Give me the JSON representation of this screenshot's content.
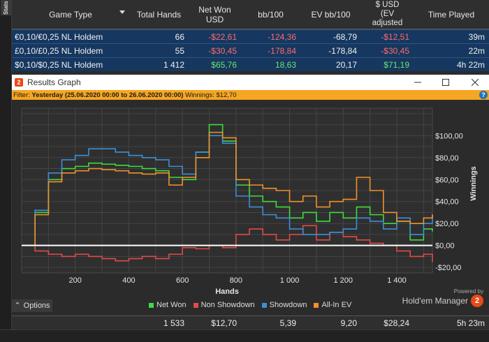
{
  "side": {
    "tab_label": "Stats"
  },
  "table": {
    "headers": [
      "Game Type",
      "Total Hands",
      "Net Won USD",
      "bb/100",
      "EV bb/100",
      "$ USD (EV adjusted",
      "Time Played"
    ],
    "header_lines": {
      "net_won": [
        "Net Won",
        "USD"
      ],
      "ev_adj": [
        "$ USD",
        "(EV",
        "adjusted"
      ]
    },
    "rows": [
      [
        "€0,10/€0,25 NL Holdem",
        "66",
        "-$22,61",
        "-124,36",
        "-68,79",
        "-$12,51",
        "39m"
      ],
      [
        "£0,10/£0,25 NL Holdem",
        "55",
        "-$30,45",
        "-178,84",
        "-178,84",
        "-$30,45",
        "22m"
      ],
      [
        "$0,10/$0,25 NL Holdem",
        "1 412",
        "$65,76",
        "18,63",
        "20,17",
        "$71,19",
        "4h 22m"
      ]
    ],
    "totals": [
      "",
      "1 533",
      "$12,70",
      "5,39",
      "9,20",
      "$28,24",
      "5h 23m"
    ]
  },
  "window": {
    "icon_text": "2",
    "title": "Results Graph",
    "filter_label": "Filter:",
    "filter_value": "Yesterday (25.06.2020 00:00 to 26.06.2020 00:00)",
    "winnings_label": "Winnings: $12,70",
    "help_text": "?"
  },
  "bottom": {
    "options_label": "Options",
    "legend": [
      {
        "name": "Net Won",
        "color": "#3ddc3d"
      },
      {
        "name": "Non Showdown",
        "color": "#e04a4a"
      },
      {
        "name": "Showdown",
        "color": "#3b8fd8"
      },
      {
        "name": "All-In EV",
        "color": "#f0922b"
      }
    ],
    "powered_by": "Powered by",
    "brand": "Hold'em Manager",
    "brand_icon": "2"
  },
  "colors": {
    "table_row": "#16375f",
    "negative": "#ff6b6b",
    "positive": "#6ee36e",
    "filter_bar": "#f5a623"
  },
  "chart_data": {
    "type": "line",
    "xlabel": "Hands",
    "ylabel": "Winnings",
    "xlim": [
      0,
      1533
    ],
    "ylim": [
      -25,
      125
    ],
    "xticks": [
      200,
      400,
      600,
      800,
      1000,
      1200,
      1400
    ],
    "xtick_labels": [
      "200",
      "400",
      "600",
      "800",
      "1 000",
      "1 200",
      "1 400"
    ],
    "yticks": [
      100,
      80,
      60,
      40,
      20,
      0,
      -20
    ],
    "ytick_labels": [
      "$100,00",
      "$80,00",
      "$60,00",
      "$40,00",
      "$20,00",
      "$0,00",
      "-$20,00"
    ],
    "grid": true,
    "x": [
      0,
      50,
      100,
      150,
      200,
      250,
      300,
      350,
      400,
      450,
      500,
      550,
      600,
      650,
      700,
      750,
      800,
      850,
      900,
      950,
      1000,
      1050,
      1100,
      1150,
      1200,
      1250,
      1300,
      1350,
      1400,
      1450,
      1500,
      1533
    ],
    "series": [
      {
        "name": "Net Won",
        "color": "#3ddc3d",
        "values": [
          0,
          30,
          60,
          70,
          72,
          75,
          74,
          73,
          72,
          70,
          68,
          62,
          60,
          85,
          110,
          95,
          55,
          45,
          40,
          35,
          25,
          30,
          22,
          30,
          25,
          35,
          28,
          20,
          22,
          5,
          15,
          12.7
        ]
      },
      {
        "name": "Non Showdown",
        "color": "#e04a4a",
        "values": [
          0,
          -5,
          -8,
          -10,
          -8,
          -10,
          -12,
          -14,
          -12,
          -10,
          -12,
          -8,
          -2,
          -3,
          0,
          -2,
          10,
          15,
          10,
          5,
          10,
          18,
          5,
          12,
          8,
          5,
          2,
          0,
          -5,
          -10,
          -8,
          -15
        ]
      },
      {
        "name": "Showdown",
        "color": "#3b8fd8",
        "values": [
          0,
          32,
          66,
          78,
          82,
          88,
          88,
          85,
          82,
          80,
          78,
          72,
          65,
          85,
          100,
          93,
          45,
          35,
          28,
          25,
          15,
          10,
          10,
          12,
          15,
          25,
          22,
          15,
          25,
          10,
          20,
          28
        ]
      },
      {
        "name": "All-In EV",
        "color": "#f0922b",
        "values": [
          0,
          28,
          58,
          66,
          68,
          70,
          69,
          68,
          66,
          65,
          66,
          55,
          62,
          80,
          103,
          98,
          60,
          55,
          52,
          50,
          40,
          45,
          35,
          40,
          42,
          62,
          50,
          30,
          22,
          20,
          25,
          28.2
        ]
      }
    ]
  }
}
